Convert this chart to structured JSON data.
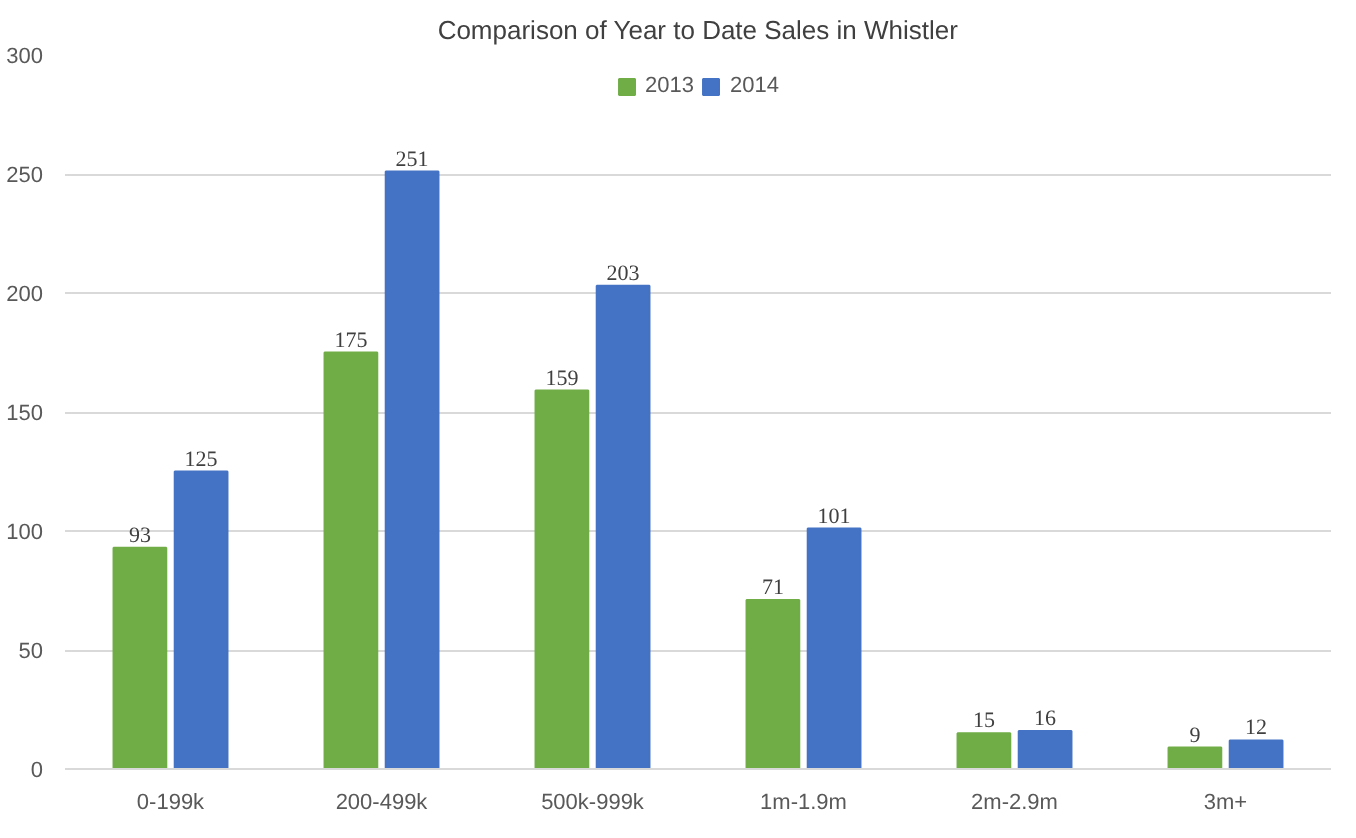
{
  "chart_data": {
    "type": "bar",
    "title": "Comparison of Year to Date Sales in Whistler",
    "categories": [
      "0-199k",
      "200-499k",
      "500k-999k",
      "1m-1.9m",
      "2m-2.9m",
      "3m+"
    ],
    "series": [
      {
        "name": "2013",
        "color": "#70ad47",
        "values": [
          93,
          175,
          159,
          71,
          15,
          9
        ]
      },
      {
        "name": "2014",
        "color": "#4472c4",
        "values": [
          125,
          251,
          203,
          101,
          16,
          12
        ]
      }
    ],
    "ylim": [
      0,
      300
    ],
    "yticks": [
      0,
      50,
      100,
      150,
      200,
      250,
      300
    ],
    "grid": "y",
    "legend": "top",
    "data_labels": true
  }
}
